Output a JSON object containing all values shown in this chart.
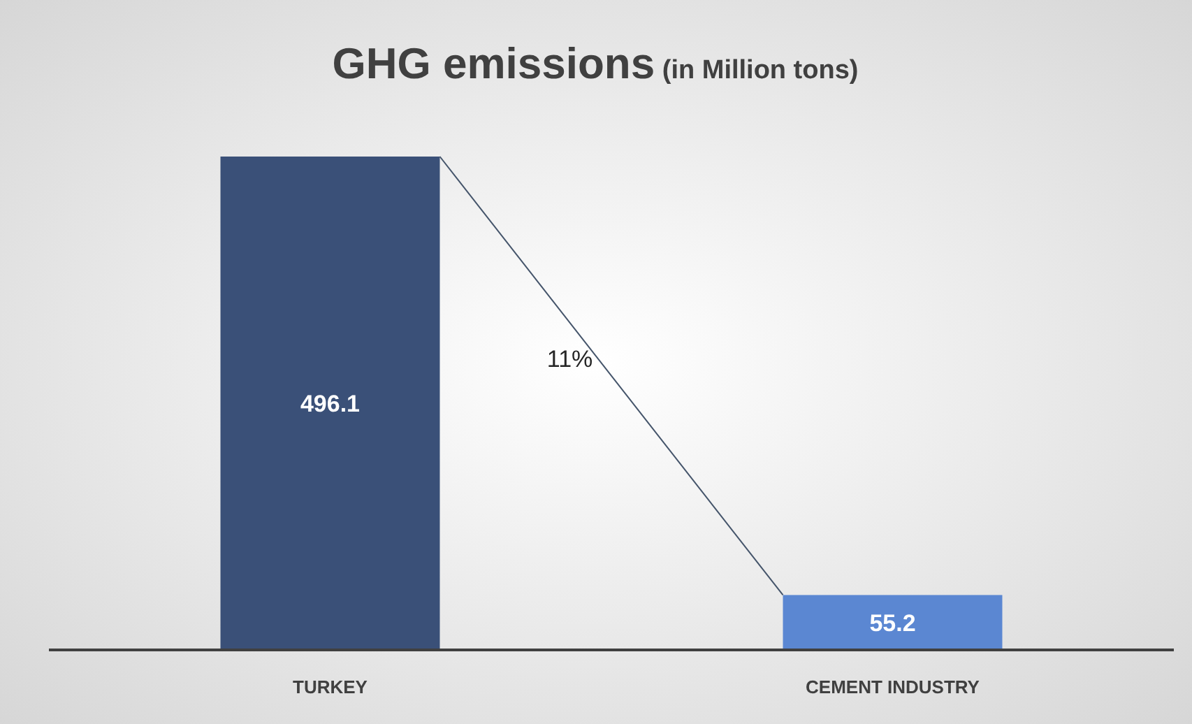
{
  "chart_data": {
    "type": "bar",
    "title": "GHG emissions",
    "subtitle": "(in Million tons)",
    "categories": [
      "TURKEY",
      "CEMENT INDUSTRY"
    ],
    "values": [
      496.1,
      55.2
    ],
    "colors": [
      "#3a5078",
      "#5b87d2"
    ],
    "data_labels": true,
    "annotations": [
      "11%"
    ]
  }
}
